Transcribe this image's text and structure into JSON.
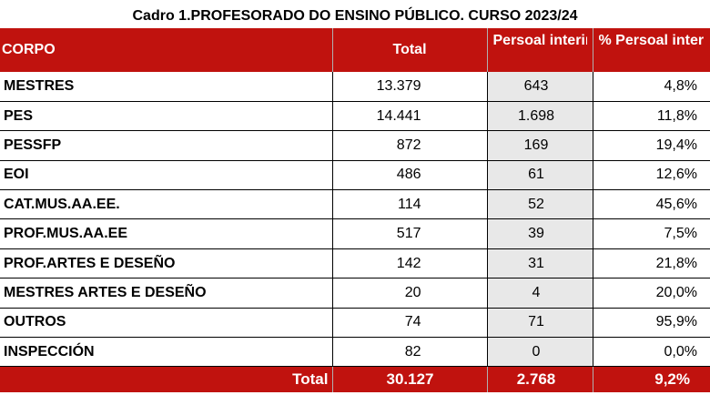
{
  "title": "Cadro 1.PROFESORADO DO ENSINO PÚBLICO. CURSO 2023/24",
  "headers": {
    "corpo": "CORPO",
    "total": "Total",
    "persoal_interino": "Persoal interino",
    "pct_persoal_interino": "% Persoal interino"
  },
  "rows": [
    {
      "corpo": "MESTRES",
      "total": "13.379",
      "persoal_interino": "643",
      "pct": "4,8%"
    },
    {
      "corpo": "PES",
      "total": "14.441",
      "persoal_interino": "1.698",
      "pct": "11,8%"
    },
    {
      "corpo": "PESSFP",
      "total": "872",
      "persoal_interino": "169",
      "pct": "19,4%"
    },
    {
      "corpo": "EOI",
      "total": "486",
      "persoal_interino": "61",
      "pct": "12,6%"
    },
    {
      "corpo": "CAT.MUS.AA.EE.",
      "total": "114",
      "persoal_interino": "52",
      "pct": "45,6%"
    },
    {
      "corpo": "PROF.MUS.AA.EE",
      "total": "517",
      "persoal_interino": "39",
      "pct": "7,5%"
    },
    {
      "corpo": "PROF.ARTES E DESEÑO",
      "total": "142",
      "persoal_interino": "31",
      "pct": "21,8%"
    },
    {
      "corpo": "MESTRES ARTES E DESEÑO",
      "total": "20",
      "persoal_interino": "4",
      "pct": "20,0%"
    },
    {
      "corpo": "OUTROS",
      "total": "74",
      "persoal_interino": "71",
      "pct": "95,9%"
    },
    {
      "corpo": "INSPECCIÓN",
      "total": "82",
      "persoal_interino": "0",
      "pct": "0,0%"
    }
  ],
  "footer": {
    "label": "Total",
    "total": "30.127",
    "persoal_interino": "2.768",
    "pct": "9,2%"
  },
  "colors": {
    "header_red": "#c0120e",
    "interino_shade": "#e8e8e8"
  }
}
